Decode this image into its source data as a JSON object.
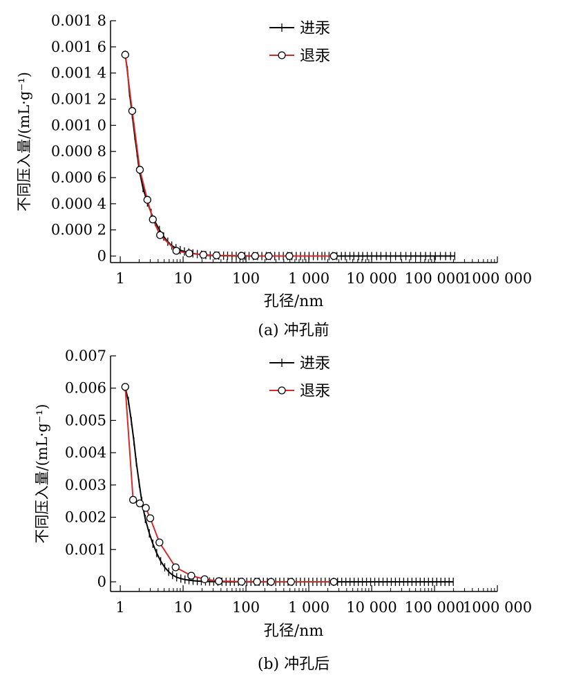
{
  "chart_data": [
    {
      "type": "line",
      "caption": "(a) 冲孔前",
      "xlabel": "孔径/nm",
      "ylabel": "不同压入量/(mL·g⁻¹)",
      "x_scale": "log",
      "xlim": [
        0.7,
        1000000
      ],
      "ylim": [
        -5e-05,
        0.0018
      ],
      "x_ticks": [
        1,
        10,
        100,
        1000,
        10000,
        100000,
        1000000
      ],
      "x_tick_labels": [
        "1",
        "10",
        "100",
        "1 000",
        "10 000",
        "100 000",
        "1000 000"
      ],
      "y_ticks": [
        0,
        0.0002,
        0.0004,
        0.0006,
        0.0008,
        0.001,
        0.0012,
        0.0014,
        0.0016,
        0.0018
      ],
      "y_tick_labels": [
        "0",
        "0.000 2",
        "0.000 4",
        "0.000 6",
        "0.000 8",
        "0.001 0",
        "0.001 2",
        "0.001 4",
        "0.001 6",
        "0.001 8"
      ],
      "legend_position": "top-center",
      "series": [
        {
          "name": "进汞",
          "color": "#000000",
          "marker": "plus",
          "x": [
            1.2,
            1.3,
            1.4,
            1.55,
            1.7,
            1.85,
            2.0,
            2.3,
            2.7,
            3.1,
            3.6,
            4.2,
            4.9,
            5.7,
            6.6,
            7.7,
            9.0,
            10.5,
            12.3,
            14.3,
            16.8,
            19.6,
            23,
            27,
            32,
            37,
            44,
            51,
            60,
            70,
            82,
            96,
            112,
            131,
            153,
            179,
            210,
            245,
            287,
            336,
            393,
            460,
            538,
            630,
            737,
            862,
            1009,
            1180,
            1381,
            1616,
            1800,
            2100,
            2400,
            2800,
            3300,
            3800,
            4500,
            5200,
            6200,
            7200,
            8500,
            10000,
            12000,
            14000,
            17000,
            20000,
            24000,
            29000,
            35000,
            42000,
            50000,
            60000,
            72000,
            86000,
            103000,
            124000,
            150000,
            180000,
            210000
          ],
          "y": [
            0.00154,
            0.00142,
            0.00125,
            0.00108,
            0.00092,
            0.00079,
            0.00066,
            0.00052,
            0.00041,
            0.00033,
            0.00026,
            0.0002,
            0.00015,
            0.00011,
            8e-05,
            6e-05,
            4.5e-05,
            3.5e-05,
            2.7e-05,
            2e-05,
            1.5e-05,
            1e-05,
            7e-06,
            5e-06,
            4e-06,
            3e-06,
            2.5e-06,
            2e-06,
            1.5e-06,
            1e-06,
            1e-06,
            1e-06,
            0,
            0,
            0,
            0,
            0,
            0,
            0,
            0,
            0,
            0,
            0,
            0,
            0,
            0,
            0,
            0,
            0,
            0,
            0,
            0,
            0,
            0,
            0,
            0,
            0,
            0,
            0,
            0,
            0,
            0,
            0,
            0,
            0,
            0,
            0,
            0,
            0,
            0,
            0,
            0,
            0,
            0,
            0,
            0,
            0,
            0,
            0
          ]
        },
        {
          "name": "退汞",
          "color": "#d42a2a",
          "marker": "circle",
          "x": [
            1.2,
            1.55,
            2.05,
            2.7,
            3.3,
            4.3,
            7.8,
            12.5,
            21,
            34,
            85,
            140,
            230,
            490,
            2500
          ],
          "y": [
            0.00154,
            0.00111,
            0.00066,
            0.00043,
            0.00028,
            0.00016,
            4e-05,
            2e-05,
            1e-05,
            5e-06,
            2e-06,
            1e-06,
            0,
            0,
            0
          ]
        }
      ]
    },
    {
      "type": "line",
      "caption": "(b) 冲孔后",
      "xlabel": "孔径/nm",
      "ylabel": "不同压入量/(mL·g⁻¹)",
      "x_scale": "log",
      "xlim": [
        0.7,
        1000000
      ],
      "ylim": [
        -0.0003,
        0.007
      ],
      "x_ticks": [
        1,
        10,
        100,
        1000,
        10000,
        100000,
        1000000
      ],
      "x_tick_labels": [
        "1",
        "10",
        "100",
        "1 000",
        "10 000",
        "100 000",
        "1000 000"
      ],
      "y_ticks": [
        0,
        0.001,
        0.002,
        0.003,
        0.004,
        0.005,
        0.006,
        0.007
      ],
      "y_tick_labels": [
        "0",
        "0.001",
        "0.002",
        "0.003",
        "0.004",
        "0.005",
        "0.006",
        "0.007"
      ],
      "legend_position": "top-center",
      "series": [
        {
          "name": "进汞",
          "color": "#000000",
          "marker": "plus",
          "x": [
            1.2,
            1.35,
            1.5,
            1.65,
            1.8,
            2.0,
            2.2,
            2.5,
            2.9,
            3.3,
            3.8,
            4.4,
            5.1,
            5.9,
            6.8,
            7.9,
            9.2,
            10.7,
            12.4,
            14.4,
            16.8,
            19.5,
            22.7,
            26.4,
            30.7,
            35.7,
            41.5,
            48.3,
            56.2,
            65.3,
            76,
            88.4,
            103,
            120,
            139,
            162,
            189,
            219,
            255,
            297,
            345,
            402,
            467,
            544,
            632,
            735,
            856,
            995,
            1158,
            1347,
            1567,
            1823,
            2120,
            2467,
            2870,
            3339,
            3884,
            4519,
            5257,
            6115,
            7114,
            8277,
            9629,
            11203,
            13033,
            15163,
            17640,
            20522,
            23875,
            27776,
            32314,
            37594,
            43736,
            50882,
            59195,
            68867,
            80119,
            93209,
            108439,
            126156,
            146768,
            170748,
            198646
          ],
          "y": [
            0.00602,
            0.0056,
            0.00498,
            0.00435,
            0.0037,
            0.00305,
            0.0025,
            0.00195,
            0.0015,
            0.00118,
            0.00089,
            0.00064,
            0.00045,
            0.00031,
            0.00021,
            0.00014,
            0.0001,
            7e-05,
            5e-05,
            3.5e-05,
            2.5e-05,
            1.8e-05,
            1.2e-05,
            8e-06,
            5e-06,
            4e-06,
            3e-06,
            2e-06,
            1e-06,
            1e-06,
            0,
            0,
            0,
            0,
            0,
            0,
            0,
            0,
            0,
            0,
            0,
            0,
            0,
            0,
            0,
            0,
            0,
            0,
            0,
            0,
            0,
            0,
            0,
            0,
            0,
            0,
            0,
            0,
            0,
            0,
            0,
            0,
            0,
            0,
            0,
            0,
            0,
            0,
            0,
            0,
            0,
            0,
            0,
            0,
            0,
            0,
            0,
            0,
            0,
            0,
            0,
            0,
            0
          ]
        },
        {
          "name": "退汞",
          "color": "#d42a2a",
          "marker": "circle",
          "x": [
            1.2,
            1.6,
            2.05,
            2.55,
            3.0,
            4.2,
            7.6,
            13.5,
            22,
            37,
            85,
            150,
            250,
            520,
            2500
          ],
          "y": [
            0.00604,
            0.00254,
            0.00243,
            0.00229,
            0.00197,
            0.00122,
            0.00045,
            0.00019,
            8e-05,
            2e-05,
            5e-06,
            2e-06,
            0,
            0,
            0
          ]
        }
      ]
    }
  ]
}
